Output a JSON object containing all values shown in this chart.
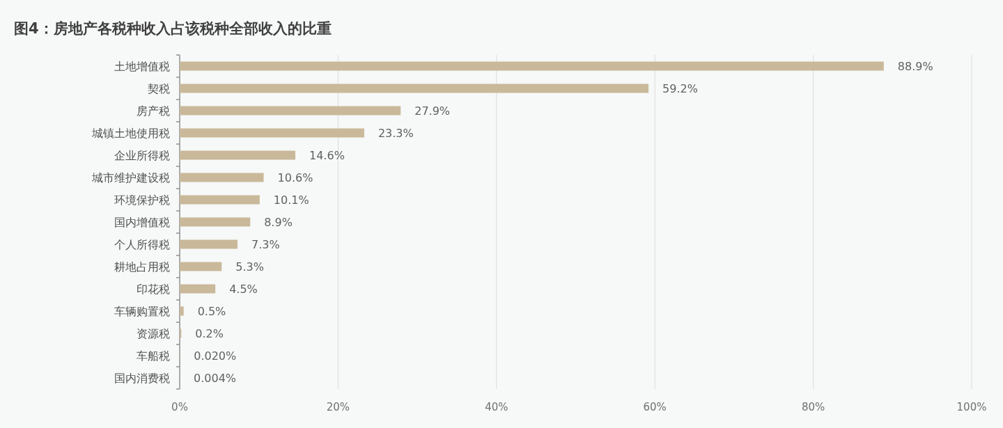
{
  "chart_data": {
    "type": "bar",
    "orientation": "horizontal",
    "title": "图4：房地产各税种收入占该税种全部收入的比重",
    "categories": [
      "土地增值税",
      "契税",
      "房产税",
      "城镇土地使用税",
      "企业所得税",
      "城市维护建设税",
      "环境保护税",
      "国内增值税",
      "个人所得税",
      "耕地占用税",
      "印花税",
      "车辆购置税",
      "资源税",
      "车船税",
      "国内消费税"
    ],
    "values": [
      88.9,
      59.2,
      27.9,
      23.3,
      14.6,
      10.6,
      10.1,
      8.9,
      7.3,
      5.3,
      4.5,
      0.5,
      0.2,
      0.02,
      0.004
    ],
    "value_labels": [
      "88.9%",
      "59.2%",
      "27.9%",
      "23.3%",
      "14.6%",
      "10.6%",
      "10.1%",
      "8.9%",
      "7.3%",
      "5.3%",
      "4.5%",
      "0.5%",
      "0.2%",
      "0.020%",
      "0.004%"
    ],
    "color": "#c9b99a",
    "xlim": [
      0,
      100
    ],
    "xticks": [
      {
        "value": 0,
        "label": "0%"
      },
      {
        "value": 20,
        "label": "20%"
      },
      {
        "value": 40,
        "label": "40%"
      },
      {
        "value": 60,
        "label": "60%"
      },
      {
        "value": 80,
        "label": "80%"
      },
      {
        "value": 100,
        "label": "100%"
      }
    ],
    "grid": "x"
  }
}
